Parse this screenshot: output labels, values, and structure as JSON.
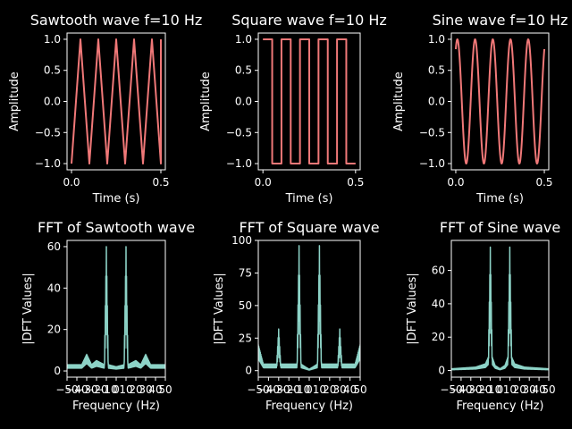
{
  "colors": {
    "background": "#000000",
    "axes": "#ffffff",
    "time_series": "#f07878",
    "fft_series": "#8dd3c7"
  },
  "chart_data": [
    {
      "type": "line",
      "title": "Sawtooth wave f=10 Hz",
      "xlabel": "Time (s)",
      "ylabel": "Amplitude",
      "waveform": "sawtooth",
      "frequency_hz": 10,
      "x_range": [
        0,
        0.5
      ],
      "xlim": [
        -0.025,
        0.525
      ],
      "ylim": [
        -1.1,
        1.1
      ],
      "xticks": [
        0,
        0.5
      ],
      "xtick_labels": [
        "0.0",
        "0.5"
      ],
      "yticks": [
        -1,
        -0.5,
        0,
        0.5,
        1
      ],
      "ytick_labels": [
        "−1.0",
        "−0.5",
        "0.0",
        "0.5",
        "1.0"
      ],
      "x": [
        0,
        0.05,
        0.05,
        0.15,
        0.15,
        0.25,
        0.25,
        0.35,
        0.35,
        0.45,
        0.45,
        0.5
      ],
      "y": [
        -1,
        1,
        1,
        1,
        1,
        1,
        1,
        1,
        1,
        1,
        1,
        -0.75
      ]
    },
    {
      "type": "line",
      "title": "Square wave f=10 Hz",
      "xlabel": "Time (s)",
      "ylabel": "Amplitude",
      "waveform": "square",
      "frequency_hz": 10,
      "x_range": [
        0,
        0.5
      ],
      "xlim": [
        -0.025,
        0.525
      ],
      "ylim": [
        -1.1,
        1.1
      ],
      "xticks": [
        0,
        0.5
      ],
      "xtick_labels": [
        "0.0",
        "0.5"
      ],
      "yticks": [
        -1,
        -0.5,
        0,
        0.5,
        1
      ],
      "ytick_labels": [
        "−1.0",
        "−0.5",
        "0.0",
        "0.5",
        "1.0"
      ],
      "x": [
        0,
        0.05,
        0.05,
        0.1,
        0.1,
        0.15,
        0.15,
        0.2,
        0.2,
        0.25,
        0.25,
        0.3,
        0.3,
        0.35,
        0.35,
        0.4,
        0.4,
        0.45,
        0.45,
        0.5
      ],
      "y": [
        1,
        1,
        -1,
        -1,
        1,
        1,
        -1,
        -1,
        1,
        1,
        -1,
        -1,
        1,
        1,
        -1,
        -1,
        1,
        1,
        -1,
        -1
      ]
    },
    {
      "type": "line",
      "title": "Sine wave f=10 Hz",
      "xlabel": "Time (s)",
      "ylabel": "Amplitude",
      "waveform": "sine",
      "frequency_hz": 10,
      "x_range": [
        0,
        0.5
      ],
      "xlim": [
        -0.025,
        0.525
      ],
      "ylim": [
        -1.1,
        1.1
      ],
      "xticks": [
        0,
        0.5
      ],
      "xtick_labels": [
        "0.0",
        "0.5"
      ],
      "yticks": [
        -1,
        -0.5,
        0,
        0.5,
        1
      ],
      "ytick_labels": [
        "−1.0",
        "−0.5",
        "0.0",
        "0.5",
        "1.0"
      ],
      "x": [
        0,
        0.025,
        0.05,
        0.075,
        0.1,
        0.125,
        0.15,
        0.175,
        0.2,
        0.225,
        0.25,
        0.275,
        0.3,
        0.325,
        0.35,
        0.375,
        0.4,
        0.425,
        0.45,
        0.475,
        0.5
      ],
      "y": [
        0.8,
        1,
        0,
        -1,
        0,
        1,
        0,
        -1,
        0,
        1,
        0,
        -1,
        0,
        1,
        0,
        -1,
        0,
        1,
        0,
        -1,
        0.6
      ]
    },
    {
      "type": "line",
      "title": "FFT of Sawtooth wave",
      "xlabel": "Frequency (Hz)",
      "ylabel": "|DFT Values|",
      "xlim": [
        -50,
        50
      ],
      "ylim": [
        -3,
        63
      ],
      "xticks": [
        -50,
        -40,
        -30,
        -20,
        -10,
        0,
        10,
        20,
        30,
        40,
        50
      ],
      "xtick_labels": [
        "−50",
        "−40",
        "−30",
        "−20",
        "−10",
        "0",
        "10",
        "20",
        "30",
        "40",
        "50"
      ],
      "yticks": [
        0,
        20,
        40,
        60
      ],
      "ytick_labels": [
        "0",
        "20",
        "40",
        "60"
      ],
      "x": [
        -50,
        -35,
        -30,
        -25,
        -20,
        -12,
        -10,
        -8,
        0,
        8,
        10,
        12,
        20,
        25,
        30,
        35,
        50
      ],
      "y": [
        3,
        3,
        8,
        3,
        5,
        3,
        60,
        3,
        2,
        3,
        60,
        3,
        5,
        3,
        8,
        3,
        3
      ]
    },
    {
      "type": "line",
      "title": "FFT of Square wave",
      "xlabel": "Frequency (Hz)",
      "ylabel": "|DFT Values|",
      "xlim": [
        -50,
        50
      ],
      "ylim": [
        -5,
        100
      ],
      "xticks": [
        -50,
        -40,
        -30,
        -20,
        -10,
        0,
        10,
        20,
        30,
        40,
        50
      ],
      "xtick_labels": [
        "−50",
        "−40",
        "−30",
        "−20",
        "−10",
        "0",
        "10",
        "20",
        "30",
        "40",
        "50"
      ],
      "yticks": [
        0,
        25,
        50,
        75,
        100
      ],
      "ytick_labels": [
        "0",
        "25",
        "50",
        "75",
        "100"
      ],
      "x": [
        -50,
        -45,
        -32,
        -30,
        -28,
        -12,
        -10,
        -8,
        0,
        8,
        10,
        12,
        28,
        30,
        32,
        45,
        50
      ],
      "y": [
        20,
        5,
        5,
        32,
        5,
        5,
        96,
        5,
        1,
        5,
        96,
        5,
        5,
        32,
        5,
        5,
        20
      ]
    },
    {
      "type": "line",
      "title": "FFT of Sine wave",
      "xlabel": "Frequency (Hz)",
      "ylabel": "|DFT Values|",
      "xlim": [
        -50,
        50
      ],
      "ylim": [
        -4,
        78
      ],
      "xticks": [
        -50,
        -40,
        -30,
        -20,
        -10,
        0,
        10,
        20,
        30,
        40,
        50
      ],
      "xtick_labels": [
        "−50",
        "−40",
        "−30",
        "−20",
        "−10",
        "0",
        "10",
        "20",
        "30",
        "40",
        "50"
      ],
      "yticks": [
        0,
        20,
        40,
        60
      ],
      "ytick_labels": [
        "0",
        "20",
        "40",
        "60"
      ],
      "x": [
        -50,
        -25,
        -15,
        -12,
        -10,
        -8,
        -5,
        0,
        5,
        8,
        10,
        12,
        15,
        25,
        50
      ],
      "y": [
        1,
        2,
        4,
        8,
        74,
        8,
        3,
        1,
        3,
        8,
        74,
        8,
        4,
        2,
        1
      ]
    }
  ]
}
